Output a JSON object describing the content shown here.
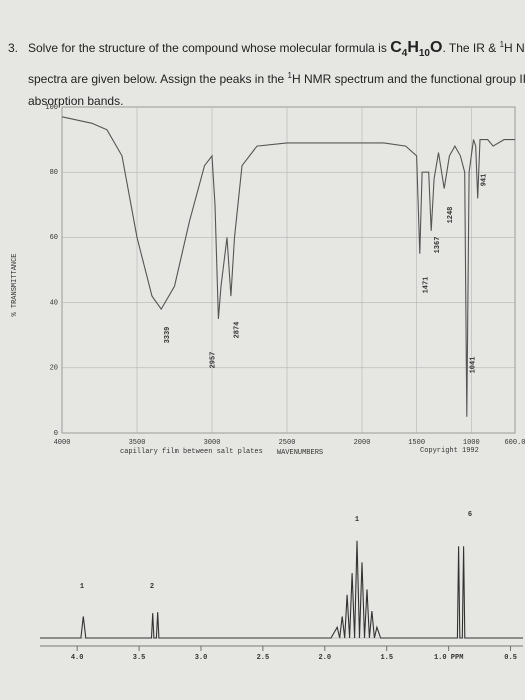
{
  "question": {
    "number": "3.",
    "line1": "Solve for the structure of the compound whose molecular formula is",
    "formula": [
      "C",
      "4",
      "H",
      "10",
      "O"
    ],
    "after": ". The IR & ",
    "sup1": "1",
    "after2": "H NMR",
    "line2a": "spectra are given below. Assign the peaks in the ",
    "sup2": "1",
    "line2b": "H NMR spectrum and the functional group IR",
    "line3": "absorption bands."
  },
  "chart_data": [
    {
      "type": "line",
      "color": "#555555",
      "x": [
        4000,
        3800,
        3700,
        3600,
        3500,
        3400,
        3339,
        3250,
        3150,
        3050,
        3000,
        2980,
        2957,
        2940,
        2900,
        2874,
        2850,
        2800,
        2700,
        2500,
        2200,
        2000,
        1800,
        1600,
        1500,
        1471,
        1450,
        1390,
        1367,
        1340,
        1300,
        1248,
        1200,
        1150,
        1100,
        1060,
        1041,
        1020,
        980,
        960,
        941,
        920,
        850,
        800,
        700,
        600
      ],
      "values": [
        97,
        95,
        93,
        85,
        60,
        42,
        38,
        45,
        65,
        82,
        85,
        70,
        35,
        45,
        60,
        42,
        60,
        82,
        88,
        89,
        89,
        89,
        89,
        88,
        85,
        55,
        80,
        80,
        62,
        78,
        86,
        75,
        85,
        88,
        85,
        80,
        5,
        80,
        90,
        88,
        72,
        90,
        90,
        88,
        90,
        90
      ],
      "xlim": [
        4000,
        600
      ],
      "ylim": [
        0,
        100
      ],
      "xticks": [
        4000,
        3500,
        3000,
        2500,
        2000,
        1500,
        1000,
        {
          "value": 600,
          "label": "600.0"
        }
      ],
      "yticks": [
        0,
        20,
        40,
        60,
        80,
        100
      ],
      "grid": true,
      "y_label": "% TRANSMITTANCE",
      "x_label": "WAVENUMBERS",
      "notes": [
        "capillary film between salt plates",
        "Copyright 1992"
      ],
      "peak_labels": [
        3339,
        2957,
        2874,
        1471,
        1367,
        1248,
        1041,
        941
      ]
    },
    {
      "type": "line",
      "color": "#333333",
      "x": [
        4.3,
        3.97,
        3.95,
        3.93,
        3.4,
        3.39,
        3.38,
        3.36,
        3.35,
        3.34,
        1.95,
        1.9,
        1.88,
        1.86,
        1.84,
        1.82,
        1.8,
        1.78,
        1.76,
        1.74,
        1.72,
        1.7,
        1.68,
        1.66,
        1.64,
        1.62,
        1.6,
        1.58,
        1.55,
        0.93,
        0.92,
        0.91,
        0.89,
        0.88,
        0.87,
        0.4
      ],
      "values": [
        0,
        0,
        20,
        0,
        0,
        23,
        0,
        0,
        24,
        0,
        0,
        10,
        0,
        20,
        0,
        40,
        0,
        60,
        0,
        90,
        0,
        70,
        0,
        45,
        0,
        25,
        0,
        10,
        0,
        0,
        85,
        0,
        0,
        85,
        0,
        0
      ],
      "xlim": [
        4.3,
        0.4
      ],
      "ylim": [
        0,
        100
      ],
      "xticks": [
        {
          "value": 4,
          "label": "4.0"
        },
        3.5,
        {
          "value": 3,
          "label": "3.0"
        },
        2.5,
        {
          "value": 2,
          "label": "2.0"
        },
        1.5,
        {
          "value": 1,
          "label": "1.0 PPM"
        },
        0.5
      ],
      "integrations": [
        "1",
        "2",
        "1",
        "6"
      ]
    }
  ]
}
